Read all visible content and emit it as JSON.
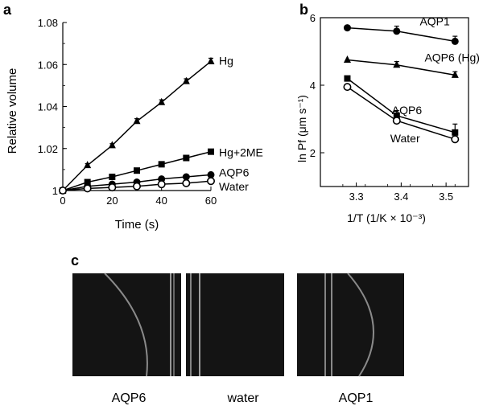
{
  "panels": {
    "a": {
      "letter": "a"
    },
    "b": {
      "letter": "b"
    },
    "c": {
      "letter": "c",
      "labels": [
        "AQP6",
        "water",
        "AQP1"
      ]
    }
  },
  "chart_data": [
    {
      "panel": "a",
      "type": "line",
      "xlabel": "Time (s)",
      "ylabel": "Relative volume",
      "xlim": [
        0,
        60
      ],
      "ylim": [
        1.0,
        1.08
      ],
      "xticks": [
        0,
        20,
        40,
        60
      ],
      "yticks": [
        "1",
        "1.02",
        "1.04",
        "1.06",
        "1.08"
      ],
      "x": [
        0,
        10,
        20,
        30,
        40,
        50,
        60
      ],
      "series": [
        {
          "name": "Hg",
          "marker": "triangle-filled",
          "values": [
            1.0,
            1.012,
            1.0215,
            1.033,
            1.042,
            1.052,
            1.0615
          ],
          "err": [
            0,
            0.0008,
            0.0008,
            0.0012,
            0.0012,
            0.0012,
            0.0015
          ]
        },
        {
          "name": "Hg+2ME",
          "marker": "square-filled",
          "values": [
            1.0,
            1.004,
            1.0065,
            1.0095,
            1.0125,
            1.0155,
            1.0185
          ],
          "err": [
            0,
            0.0006,
            0.0006,
            0.0008,
            0.0008,
            0.001,
            0.001
          ]
        },
        {
          "name": "AQP6",
          "marker": "circle-filled",
          "values": [
            1.0,
            1.002,
            1.003,
            1.004,
            1.0055,
            1.0065,
            1.0075
          ],
          "err": [
            0,
            0.0006,
            0.0006,
            0.0008,
            0.0008,
            0.001,
            0.001
          ]
        },
        {
          "name": "Water",
          "marker": "circle-open",
          "values": [
            1.0,
            1.001,
            1.0015,
            1.002,
            1.003,
            1.0035,
            1.0045
          ],
          "err": [
            0,
            0.0005,
            0.0005,
            0.0006,
            0.0006,
            0.0008,
            0.0008
          ]
        }
      ],
      "grid": false
    },
    {
      "panel": "b",
      "type": "line",
      "xlabel": "1/T (1/K × 10⁻³)",
      "ylabel": "ln Pf (μm s⁻¹)",
      "xlim": [
        3.22,
        3.55
      ],
      "ylim": [
        1,
        6
      ],
      "xticks": [
        "3.3",
        "3.4",
        "3.5"
      ],
      "yticks": [
        "2",
        "4",
        "6"
      ],
      "x": [
        3.28,
        3.39,
        3.52
      ],
      "series": [
        {
          "name": "AQP1",
          "marker": "circle-filled",
          "values": [
            5.7,
            5.6,
            5.3
          ],
          "err": [
            0,
            0.15,
            0.15
          ]
        },
        {
          "name": "AQP6 (Hg)",
          "marker": "triangle-filled",
          "values": [
            4.75,
            4.6,
            4.3
          ],
          "err": [
            0,
            0.1,
            0.1
          ]
        },
        {
          "name": "AQP6",
          "marker": "square-filled",
          "values": [
            4.2,
            3.1,
            2.6
          ],
          "err": [
            0.05,
            0.15,
            0.25
          ]
        },
        {
          "name": "Water",
          "marker": "circle-open",
          "values": [
            3.95,
            2.95,
            2.4
          ],
          "err": [
            0.05,
            0.1,
            0.15
          ]
        }
      ],
      "grid": false
    }
  ]
}
